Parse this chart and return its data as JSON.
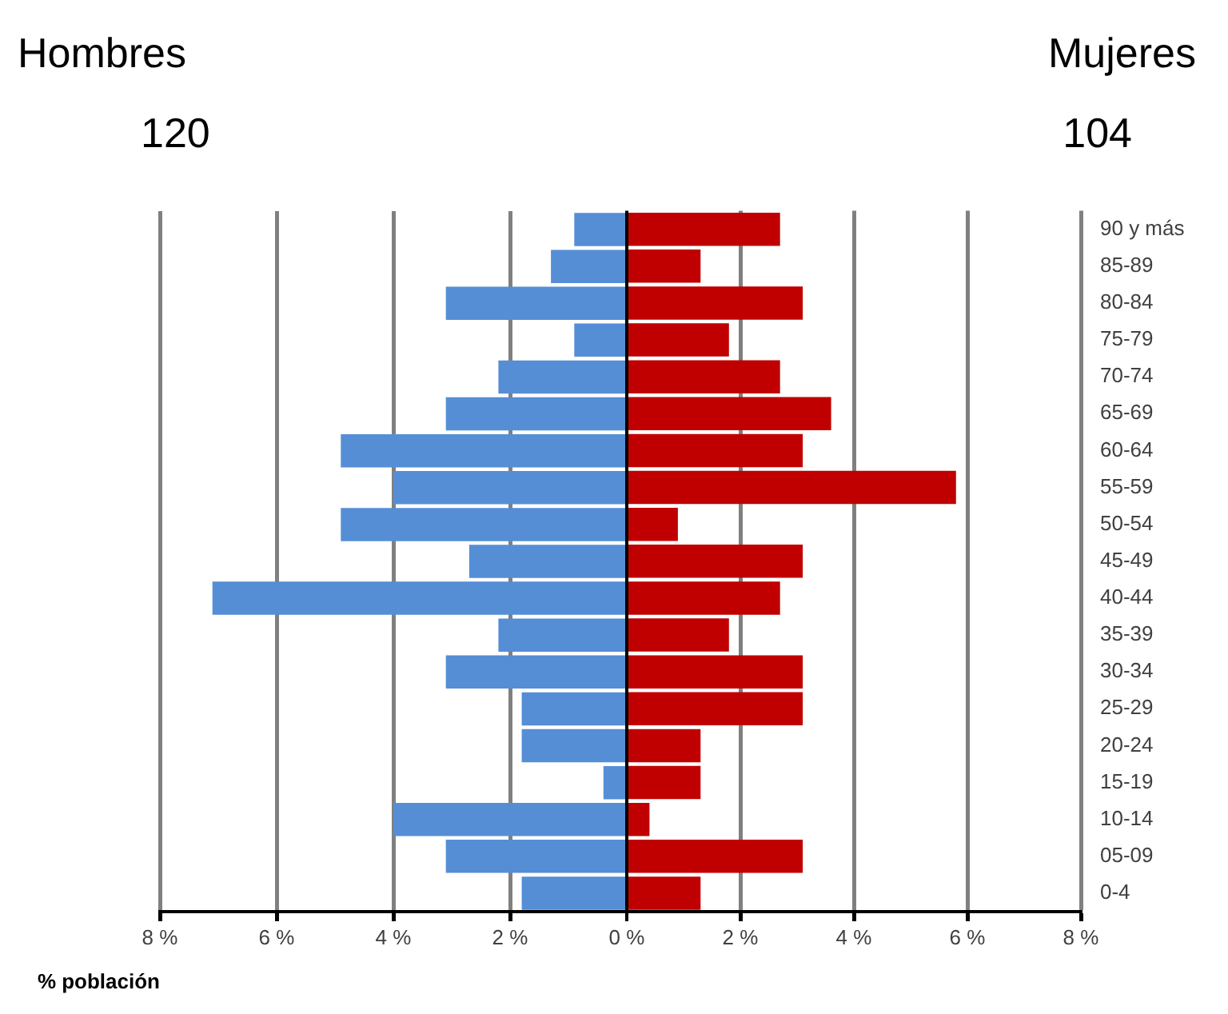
{
  "chart_data": [
    {
      "type": "bar",
      "orientation": "horizontal",
      "annotations": [
        "Hombres",
        "120"
      ],
      "xlabel": "% población",
      "tick_labels": "x",
      "categories": [
        null,
        null,
        null,
        null,
        null,
        null,
        null,
        null,
        null,
        null,
        null,
        null,
        null,
        null,
        null,
        null,
        null,
        null,
        null
      ],
      "color": "#558ed5",
      "values": [
        0.9,
        1.3,
        3.1,
        0.9,
        2.2,
        3.1,
        4.9,
        4.0,
        4.9,
        2.7,
        7.1,
        2.2,
        3.1,
        1.8,
        1.8,
        0.4,
        4.0,
        3.1,
        1.8
      ],
      "xlim": [
        8,
        0
      ],
      "xticks": [
        {
          "value": 8,
          "label": "8 %"
        },
        {
          "value": 6,
          "label": "6 %"
        },
        {
          "value": 4,
          "label": "4 %"
        },
        {
          "value": 2,
          "label": "2 %"
        },
        {
          "value": 0,
          "label": null
        }
      ],
      "grid": "x",
      "legend": false
    },
    {
      "type": "bar",
      "orientation": "horizontal",
      "annotations": [
        "Mujeres",
        "104"
      ],
      "categories": [
        "90 y más",
        "85-89",
        "80-84",
        "75-79",
        "70-74",
        "65-69",
        "60-64",
        "55-59",
        "50-54",
        "45-49",
        "40-44",
        "35-39",
        "30-34",
        "25-29",
        "20-24",
        "15-19",
        "10-14",
        "05-09",
        "0-4"
      ],
      "color": "#c00000",
      "values": [
        2.7,
        1.3,
        3.1,
        1.8,
        2.7,
        3.6,
        3.1,
        5.8,
        0.9,
        3.1,
        2.7,
        1.8,
        3.1,
        3.1,
        1.3,
        1.3,
        0.4,
        3.1,
        1.3
      ],
      "xlim": [
        0,
        8
      ],
      "xticks": [
        {
          "value": 0,
          "label": "0 %"
        },
        {
          "value": 2,
          "label": "2 %"
        },
        {
          "value": 4,
          "label": "4 %"
        },
        {
          "value": 6,
          "label": "6 %"
        },
        {
          "value": 8,
          "label": "8 %"
        }
      ],
      "grid": "x",
      "legend": false
    }
  ]
}
